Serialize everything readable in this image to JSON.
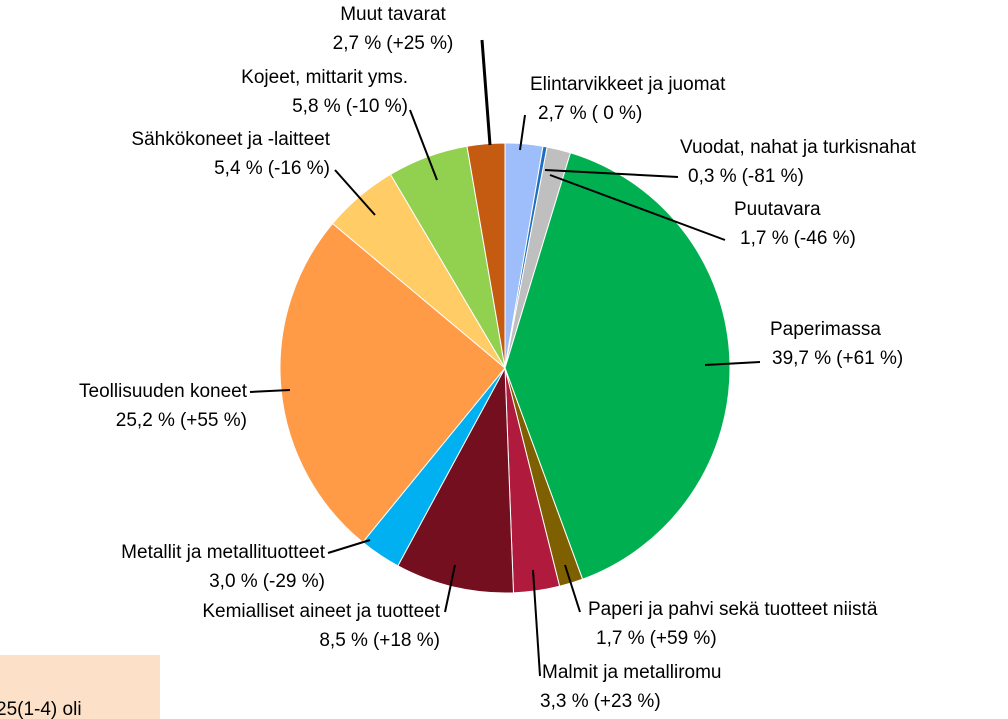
{
  "chart_data": {
    "type": "pie",
    "categories": [
      "Elintarvikkeet ja juomat",
      "Vuodat, nahat ja turkisnahat",
      "Puutavara",
      "Paperimassa",
      "Paperi ja pahvi sekä tuotteet niistä",
      "Malmit ja metalliromu",
      "Kemialliset aineet ja tuotteet",
      "Metallit ja metallituotteet",
      "Teollisuuden koneet",
      "Sähkökoneet ja -laitteet",
      "Kojeet, mittarit yms.",
      "Muut tavarat"
    ],
    "values": [
      2.7,
      0.3,
      1.7,
      39.7,
      1.7,
      3.3,
      8.5,
      3.0,
      25.2,
      5.4,
      5.8,
      2.7
    ],
    "value_labels": [
      "2,7 %",
      "0,3 %",
      "1,7 %",
      "39,7 %",
      "1,7 %",
      "3,3 %",
      "8,5 %",
      "3,0 %",
      "25,2 %",
      "5,4 %",
      "5,8 %",
      "2,7 %"
    ],
    "changes": [
      "( 0 %)",
      "(-81 %)",
      "(-46 %)",
      "(+61 %)",
      "(+59 %)",
      "(+23 %)",
      "(+18 %)",
      "(-29 %)",
      "(+55 %)",
      "(-16 %)",
      "(-10 %)",
      "(+25 %)"
    ],
    "colors": [
      "#9dbdfb",
      "#1f6fc0",
      "#bfbfbf",
      "#00b050",
      "#7f6000",
      "#b01a3c",
      "#730f1f",
      "#00b0f0",
      "#ff9b47",
      "#ffcc66",
      "#92d050",
      "#c55a11"
    ],
    "annotation": "25(1-4) oli"
  }
}
